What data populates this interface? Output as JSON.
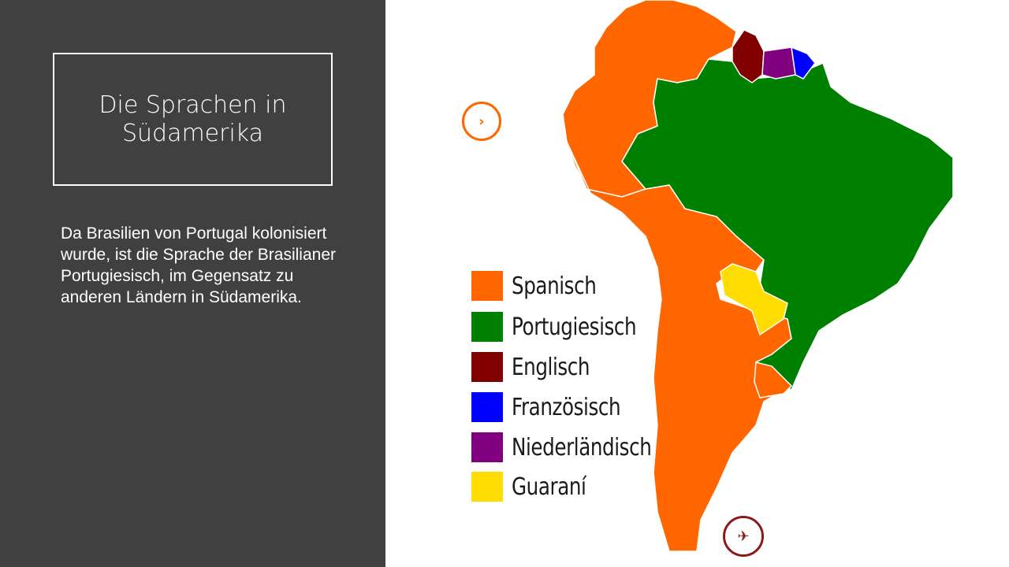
{
  "slide": {
    "title": "Die Sprachen in Südamerika",
    "body": "Da Brasilien von Portugal kolonisiert wurde, ist die Sprache der Brasilianer Portugiesisch, im Gegensatz zu anderen Ländern in Südamerika."
  },
  "legend": [
    {
      "label": "Spanisch",
      "color": "#ff6600"
    },
    {
      "label": "Portugiesisch",
      "color": "#008000"
    },
    {
      "label": "Englisch",
      "color": "#800000"
    },
    {
      "label": "Französisch",
      "color": "#0000ff"
    },
    {
      "label": "Niederländisch",
      "color": "#800080"
    },
    {
      "label": "Guaraní",
      "color": "#ffdd00"
    }
  ],
  "map": {
    "icons": [
      "chevron-right-icon",
      "bird-icon"
    ],
    "colors": {
      "panel": "#404040",
      "border": "#ffffff",
      "orange_accent": "#ff6600",
      "dark_red_accent": "#8b1a1a"
    }
  }
}
